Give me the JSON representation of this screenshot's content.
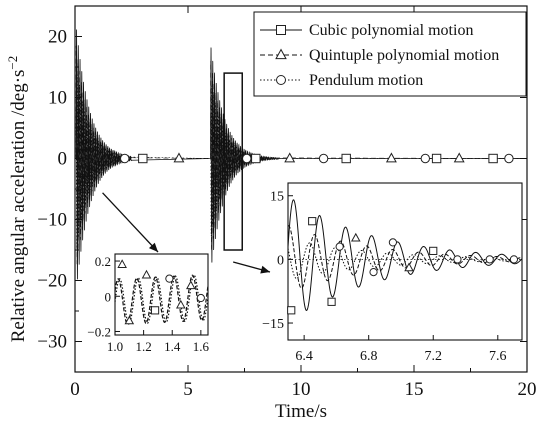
{
  "chart_data": [
    {
      "id": "main",
      "type": "line",
      "xlabel": "Time/s",
      "ylabel": "Relative angular acceleration /deg·s",
      "ylabel_exponent": "−2",
      "xlim": [
        0,
        20
      ],
      "ylim": [
        -35,
        25
      ],
      "xticks": [
        0,
        5,
        10,
        15,
        20
      ],
      "yticks": [
        -30,
        -20,
        -10,
        0,
        10,
        20
      ],
      "grid": false,
      "legend_position": "top-right",
      "series": [
        {
          "name": "Cubic polynomial motion",
          "line": "solid",
          "marker": "square",
          "marker_x": [
            3,
            8,
            12,
            16,
            18.5
          ]
        },
        {
          "name": "Quintuple polynomial motion",
          "line": "dashed",
          "marker": "triangle",
          "marker_x": [
            4.6,
            9.5,
            14,
            17
          ]
        },
        {
          "name": "Pendulum motion",
          "line": "dotted",
          "marker": "circle",
          "marker_x": [
            2.2,
            7.6,
            11,
            15.5,
            19.2
          ]
        }
      ],
      "bursts": [
        {
          "start": 0.05,
          "end": 2.5,
          "amp": 22,
          "freq": 13
        },
        {
          "start": 6.0,
          "end": 9.0,
          "amp": 19,
          "freq": 13
        }
      ],
      "highlight_boxes": [
        {
          "x": [
            0.1,
            0.6
          ],
          "y": [
            -3,
            1.5
          ]
        },
        {
          "x": [
            6.6,
            7.4
          ],
          "y": [
            -15,
            14
          ]
        }
      ]
    },
    {
      "id": "inset-left",
      "type": "line",
      "xlim": [
        1.0,
        1.65
      ],
      "ylim": [
        -0.22,
        0.24
      ],
      "xticks": [
        1.0,
        1.2,
        1.4,
        1.6
      ],
      "xtick_labels": [
        "1.0",
        "1.2",
        "1.4",
        "1.6"
      ],
      "yticks": [
        -0.2,
        0,
        0.2
      ],
      "ytick_labels": [
        "−0.2",
        "0",
        "0.2"
      ]
    },
    {
      "id": "inset-right",
      "type": "line",
      "xlim": [
        6.3,
        7.75
      ],
      "ylim": [
        -19,
        18
      ],
      "xticks": [
        6.4,
        6.8,
        7.2,
        7.6
      ],
      "xtick_labels": [
        "6.4",
        "6.8",
        "7.2",
        "7.6"
      ],
      "yticks": [
        -15,
        0,
        15
      ],
      "ytick_labels": [
        "−15",
        "0",
        "15"
      ]
    }
  ]
}
